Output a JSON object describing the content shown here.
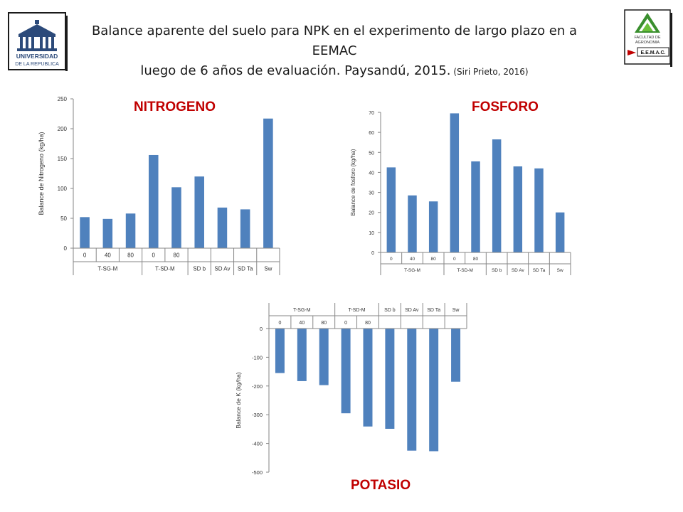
{
  "header": {
    "title_line1": "Balance aparente del suelo para NPK en el experimento de largo plazo en a EEMAC",
    "title_line2": "luego de 6 años de evaluación. Paysandú, 2015.",
    "citation": " (Siri Prieto, 2016)"
  },
  "logos": {
    "left": {
      "line1": "UNIVERSIDAD",
      "line2": "DE LA REPUBLICA"
    },
    "right": {
      "line1": "FACULTAD DE",
      "line2": "AGRONOMIA",
      "line3": "E.E.M.A.C."
    }
  },
  "colors": {
    "bar": "#4f81bd",
    "title_red": "#c00000",
    "axis": "#868686"
  },
  "chart_data": [
    {
      "type": "bar",
      "title": "NITROGENO",
      "ylabel": "Balance de Nitrogeno (kg/ha)",
      "ylim": [
        0,
        250
      ],
      "yticks": [
        0,
        50,
        100,
        150,
        200,
        250
      ],
      "categories": [
        "0",
        "40",
        "80",
        "0",
        "80",
        "",
        "",
        "",
        ""
      ],
      "groups": [
        {
          "label": "T-SG-M",
          "span": 3
        },
        {
          "label": "T-SD-M",
          "span": 2
        },
        {
          "label": "SD b",
          "span": 1
        },
        {
          "label": "SD Av",
          "span": 1
        },
        {
          "label": "SD Ta",
          "span": 1
        },
        {
          "label": "Sw",
          "span": 1
        }
      ],
      "values": [
        52,
        49,
        58,
        156,
        102,
        120,
        68,
        65,
        217
      ],
      "grid": false
    },
    {
      "type": "bar",
      "title": "FOSFORO",
      "ylabel": "Balance de fosforo (kg/ha)",
      "ylim": [
        0,
        70
      ],
      "yticks": [
        0,
        10,
        20,
        30,
        40,
        50,
        60,
        70
      ],
      "categories": [
        "0",
        "40",
        "80",
        "0",
        "80",
        "",
        "",
        "",
        ""
      ],
      "groups": [
        {
          "label": "T-SG-M",
          "span": 3
        },
        {
          "label": "T-SD-M",
          "span": 2
        },
        {
          "label": "SD b",
          "span": 1
        },
        {
          "label": "SD Av",
          "span": 1
        },
        {
          "label": "SD Ta",
          "span": 1
        },
        {
          "label": "Sw",
          "span": 1
        }
      ],
      "values": [
        42.5,
        28.5,
        25.5,
        69.5,
        45.5,
        56.5,
        43,
        42,
        20
      ],
      "grid": false
    },
    {
      "type": "bar",
      "title": "POTASIO",
      "ylabel": "Balance de K (kg/ha)",
      "ylim": [
        -500,
        0
      ],
      "yticks": [
        -500,
        -400,
        -300,
        -200,
        -100,
        0
      ],
      "categories": [
        "0",
        "40",
        "80",
        "0",
        "80",
        "",
        "",
        "",
        ""
      ],
      "groups": [
        {
          "label": "T-SG-M",
          "span": 3
        },
        {
          "label": "T-SD-M",
          "span": 2
        },
        {
          "label": "SD b",
          "span": 1
        },
        {
          "label": "SD Av",
          "span": 1
        },
        {
          "label": "SD Ta",
          "span": 1
        },
        {
          "label": "Sw",
          "span": 1
        }
      ],
      "values": [
        -155,
        -183,
        -197,
        -295,
        -341,
        -349,
        -425,
        -427,
        -185
      ],
      "grid": false
    }
  ]
}
